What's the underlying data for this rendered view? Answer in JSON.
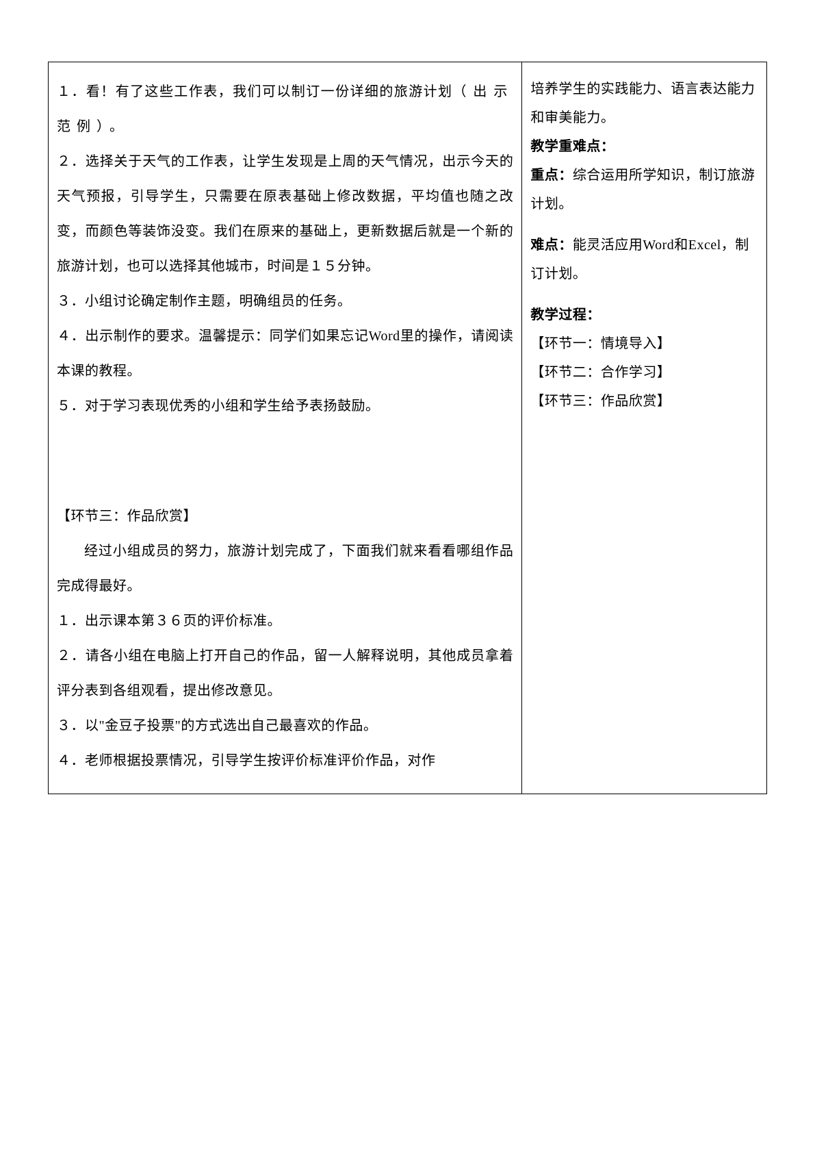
{
  "left": {
    "p1a": "１．看！有了这些工作表，我们可以制订一份详细的旅游计划",
    "p1b": "（出示范例）。",
    "p2": "２．选择关于天气的工作表，让学生发现是上周的天气情况，出示今天的天气预报，引导学生，只需要在原表基础上修改数据，平均值也随之改变，而颜色等装饰没变。我们在原来的基础上，更新数据后就是一个新的旅游计划，也可以选择其他城市，时间是１５分钟。",
    "p3": "３．小组讨论确定制作主题，明确组员的任务。",
    "p4": "４．出示制作的要求。温馨提示：同学们如果忘记Word里的操作，请阅读本课的教程。",
    "p5": "５．对于学习表现优秀的小组和学生给予表扬鼓励。",
    "h3": "【环节三：作品欣赏】",
    "p6": "经过小组成员的努力，旅游计划完成了，下面我们就来看看哪组作品完成得最好。",
    "p7": "１．出示课本第３６页的评价标准。",
    "p8": "２．请各小组在电脑上打开自己的作品，留一人解释说明，其他成员拿着评分表到各组观看，提出修改意见。",
    "p9": "３．以\"金豆子投票\"的方式选出自己最喜欢的作品。",
    "p10": "４．老师根据投票情况，引导学生按评价标准评价作品，对作"
  },
  "right": {
    "r1": "培养学生的实践能力、语言表达能力和审美能力。",
    "h1": "教学重难点：",
    "r2a": "重点：",
    "r2b": "综合运用所学知识，制订旅游计划。",
    "r3a": "难点：",
    "r3b": "能灵活应用Word和Excel，制订计划。",
    "h2": "教学过程：",
    "r4": "【环节一：情境导入】",
    "r5": "【环节二：合作学习】",
    "r6": "【环节三：作品欣赏】"
  }
}
